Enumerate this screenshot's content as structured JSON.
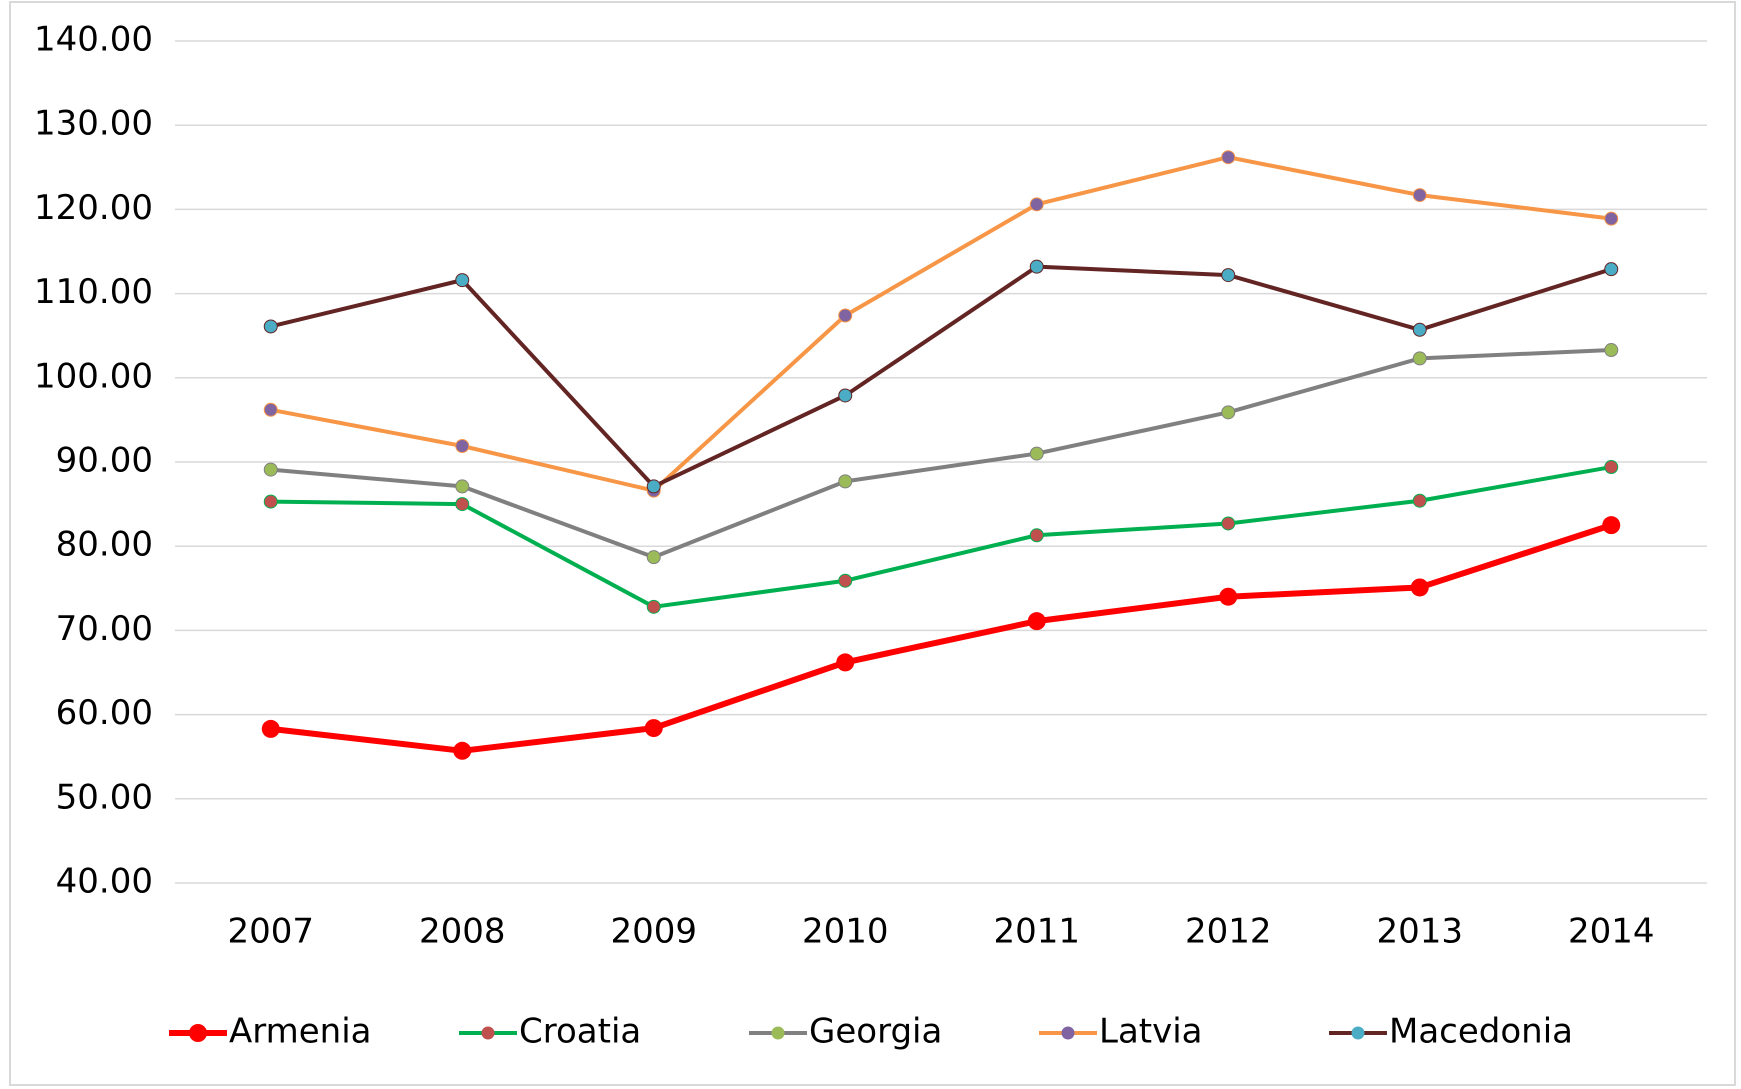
{
  "chart_data": {
    "type": "line",
    "categories": [
      "2007",
      "2008",
      "2009",
      "2010",
      "2011",
      "2012",
      "2013",
      "2014"
    ],
    "series": [
      {
        "name": "Armenia",
        "color": "#ff0000",
        "marker_color": "#ff0000",
        "values": [
          58.3,
          55.7,
          58.4,
          66.2,
          71.1,
          74.0,
          75.1,
          82.5
        ]
      },
      {
        "name": "Croatia",
        "color": "#00b050",
        "marker_color": "#c0504d",
        "values": [
          85.3,
          85.0,
          72.8,
          75.9,
          81.3,
          82.7,
          85.4,
          89.4
        ]
      },
      {
        "name": "Georgia",
        "color": "#808080",
        "marker_color": "#9bbb59",
        "values": [
          89.1,
          87.1,
          78.7,
          87.7,
          91.0,
          95.9,
          102.3,
          103.3
        ]
      },
      {
        "name": "Latvia",
        "color": "#f79646",
        "marker_color": "#8064a2",
        "values": [
          96.2,
          91.9,
          86.6,
          107.4,
          120.6,
          126.2,
          121.7,
          118.9
        ]
      },
      {
        "name": "Macedonia",
        "color": "#632523",
        "marker_color": "#4bacc6",
        "values": [
          106.1,
          111.6,
          87.1,
          97.9,
          113.2,
          112.2,
          105.7,
          112.9
        ]
      }
    ],
    "ylim": [
      40,
      140
    ],
    "yticks": [
      {
        "value": 40,
        "label": "40.00"
      },
      {
        "value": 50,
        "label": "50.00"
      },
      {
        "value": 60,
        "label": "60.00"
      },
      {
        "value": 70,
        "label": "70.00"
      },
      {
        "value": 80,
        "label": "80.00"
      },
      {
        "value": 90,
        "label": "90.00"
      },
      {
        "value": 100,
        "label": "100.00"
      },
      {
        "value": 110,
        "label": "110.00"
      },
      {
        "value": 120,
        "label": "120.00"
      },
      {
        "value": 130,
        "label": "130.00"
      },
      {
        "value": 140,
        "label": "140.00"
      }
    ],
    "grid": true,
    "legend": "bottom"
  }
}
